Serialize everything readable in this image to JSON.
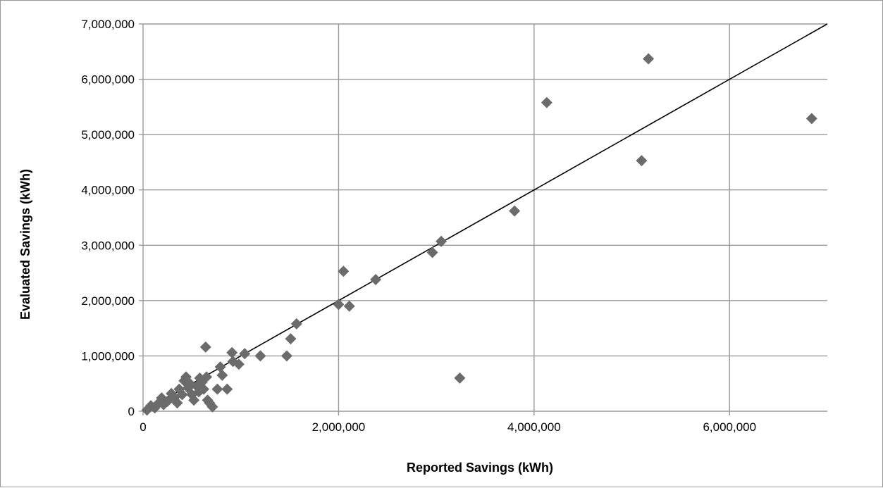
{
  "chart_data": {
    "type": "scatter",
    "title": "",
    "xlabel": "Reported Savings (kWh)",
    "ylabel": "Evaluated Savings (kWh)",
    "xlim": [
      0,
      7000000
    ],
    "ylim": [
      0,
      7000000
    ],
    "x_ticks": [
      0,
      2000000,
      4000000,
      6000000
    ],
    "x_tick_labels": [
      "0",
      "2,000,000",
      "4,000,000",
      "6,000,000"
    ],
    "y_ticks": [
      0,
      1000000,
      2000000,
      3000000,
      4000000,
      5000000,
      6000000,
      7000000
    ],
    "y_tick_labels": [
      "0",
      "1,000,000",
      "2,000,000",
      "3,000,000",
      "4,000,000",
      "5,000,000",
      "6,000,000",
      "7,000,000"
    ],
    "grid": true,
    "legend": "none",
    "marker_color": "#6b6b6b",
    "line_color": "#000000",
    "grid_color": "#9a9a9a",
    "reference_line": {
      "x": [
        0,
        7000000
      ],
      "y": [
        0,
        7000000
      ]
    },
    "series": [
      {
        "points": [
          [
            40000,
            20000
          ],
          [
            80000,
            100000
          ],
          [
            120000,
            60000
          ],
          [
            160000,
            150000
          ],
          [
            190000,
            240000
          ],
          [
            210000,
            120000
          ],
          [
            250000,
            180000
          ],
          [
            290000,
            320000
          ],
          [
            320000,
            250000
          ],
          [
            350000,
            150000
          ],
          [
            370000,
            400000
          ],
          [
            400000,
            300000
          ],
          [
            420000,
            550000
          ],
          [
            440000,
            620000
          ],
          [
            460000,
            420000
          ],
          [
            480000,
            500000
          ],
          [
            500000,
            300000
          ],
          [
            520000,
            200000
          ],
          [
            550000,
            450000
          ],
          [
            570000,
            350000
          ],
          [
            580000,
            600000
          ],
          [
            600000,
            520000
          ],
          [
            620000,
            400000
          ],
          [
            640000,
            1160000
          ],
          [
            650000,
            620000
          ],
          [
            660000,
            200000
          ],
          [
            680000,
            150000
          ],
          [
            710000,
            80000
          ],
          [
            760000,
            400000
          ],
          [
            790000,
            800000
          ],
          [
            810000,
            650000
          ],
          [
            860000,
            400000
          ],
          [
            910000,
            1060000
          ],
          [
            920000,
            900000
          ],
          [
            980000,
            850000
          ],
          [
            1040000,
            1040000
          ],
          [
            1200000,
            1000000
          ],
          [
            1470000,
            1000000
          ],
          [
            1510000,
            1310000
          ],
          [
            1570000,
            1580000
          ],
          [
            2000000,
            1930000
          ],
          [
            2050000,
            2530000
          ],
          [
            2110000,
            1900000
          ],
          [
            2380000,
            2380000
          ],
          [
            2960000,
            2870000
          ],
          [
            3050000,
            3070000
          ],
          [
            3240000,
            600000
          ],
          [
            3800000,
            3620000
          ],
          [
            4130000,
            5580000
          ],
          [
            5100000,
            4530000
          ],
          [
            5170000,
            6370000
          ],
          [
            6840000,
            5290000
          ]
        ]
      }
    ]
  }
}
